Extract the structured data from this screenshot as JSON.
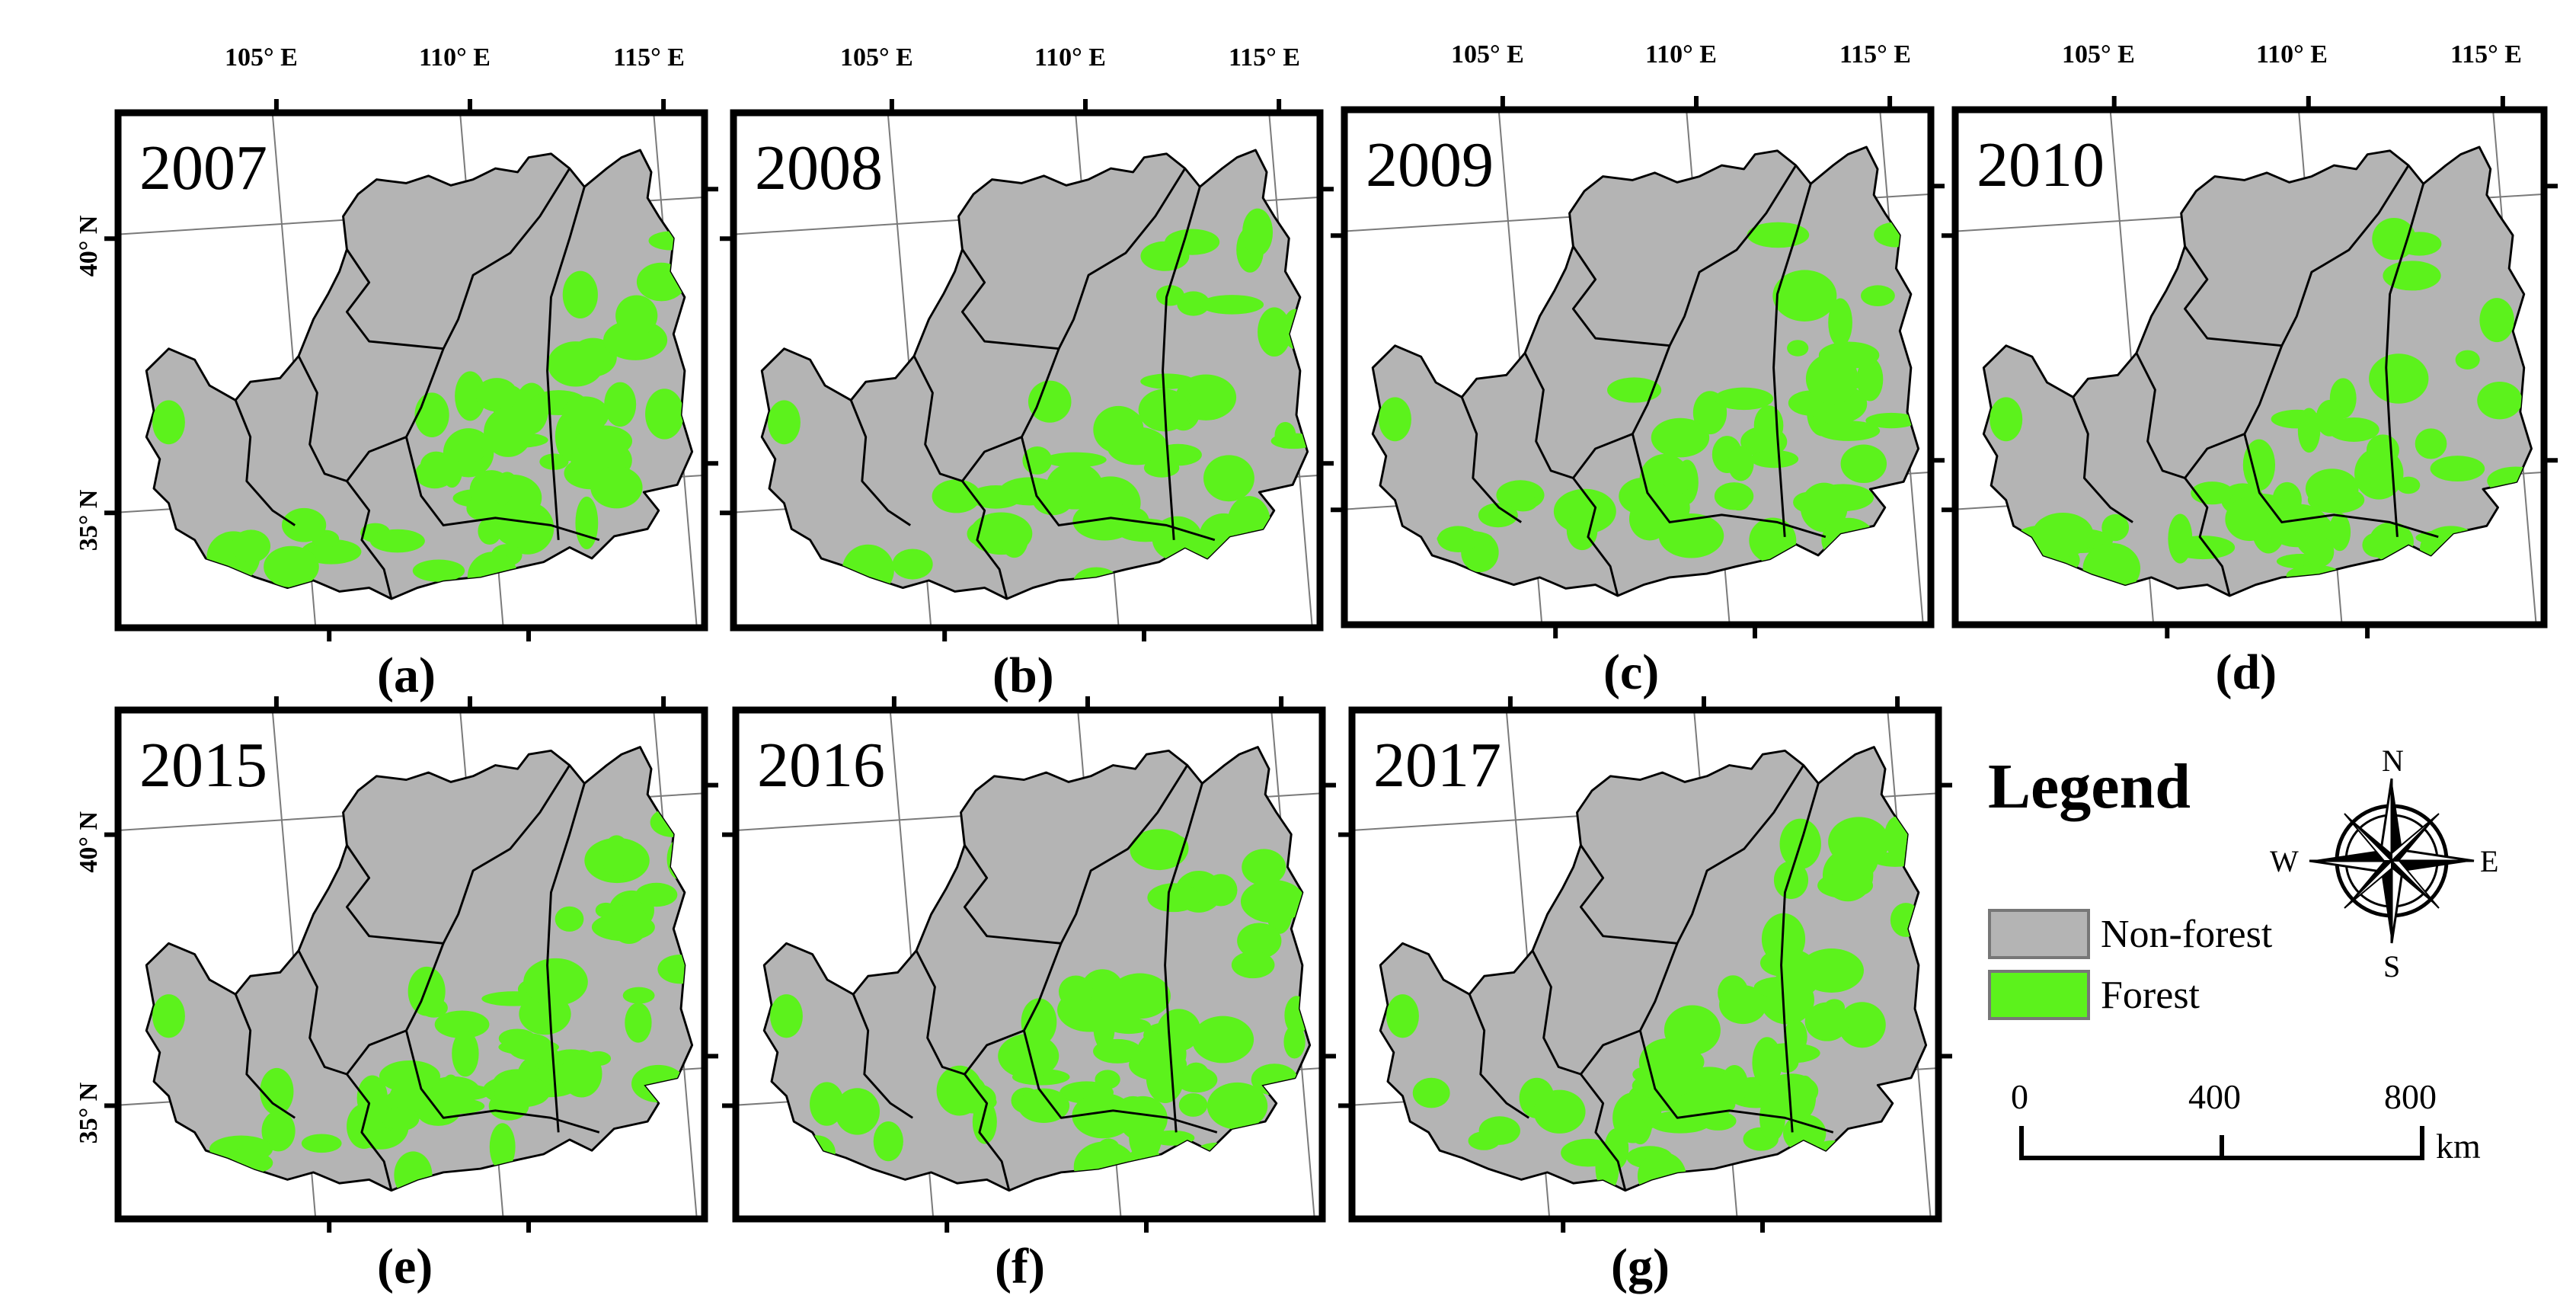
{
  "figure": {
    "longitude_labels": [
      "105° E",
      "110° E",
      "115° E"
    ],
    "latitude_labels": [
      "40° N",
      "35° N"
    ],
    "panels": [
      {
        "year": "2007",
        "label": "(a)",
        "forest_level": 0.45
      },
      {
        "year": "2008",
        "label": "(b)",
        "forest_level": 0.42
      },
      {
        "year": "2009",
        "label": "(c)",
        "forest_level": 0.44
      },
      {
        "year": "2010",
        "label": "(d)",
        "forest_level": 0.47
      },
      {
        "year": "2015",
        "label": "(e)",
        "forest_level": 0.55
      },
      {
        "year": "2016",
        "label": "(f)",
        "forest_level": 0.53
      },
      {
        "year": "2017",
        "label": "(g)",
        "forest_level": 0.56
      }
    ]
  },
  "legend": {
    "title": "Legend",
    "items": [
      {
        "label": "Non-forest",
        "color": "#b4b4b4"
      },
      {
        "label": "Forest",
        "color": "#5cf21c"
      }
    ]
  },
  "compass": {
    "n": "N",
    "s": "S",
    "e": "E",
    "w": "W"
  },
  "scale_bar": {
    "ticks": [
      "0",
      "400",
      "800"
    ],
    "unit": "km"
  },
  "colors": {
    "non_forest": "#b4b4b4",
    "forest": "#5cf21c",
    "frame": "#000000"
  }
}
